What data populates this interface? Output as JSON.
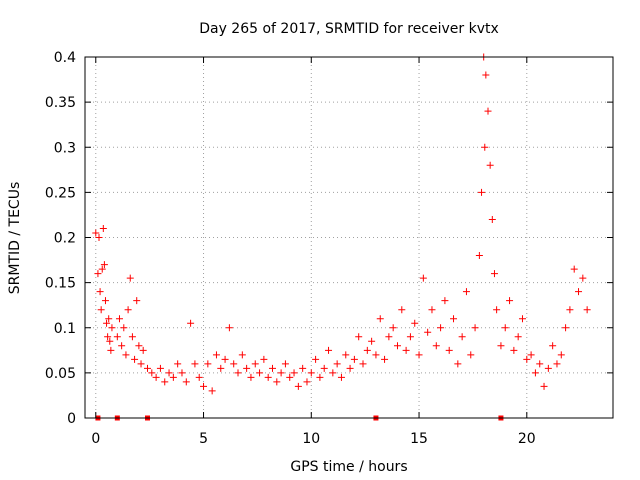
{
  "chart_data": {
    "type": "scatter",
    "title": "Day 265 of 2017, SRMTID for receiver kvtx",
    "xlabel": "GPS time / hours",
    "ylabel": "SRMTID / TECUs",
    "xlim": [
      -0.5,
      24
    ],
    "ylim": [
      0,
      0.4
    ],
    "x_ticks": [
      0,
      5,
      10,
      15,
      20
    ],
    "y_ticks": [
      0,
      0.05,
      0.1,
      0.15,
      0.2,
      0.25,
      0.3,
      0.35,
      0.4
    ],
    "x_tick_labels": [
      "0",
      "5",
      "10",
      "15",
      "20"
    ],
    "y_tick_labels": [
      "0",
      "0.05",
      "0.1",
      "0.15",
      "0.2",
      "0.25",
      "0.3",
      "0.35",
      "0.4"
    ],
    "grid": true,
    "marker": "+",
    "color": "#ff0000",
    "series": [
      {
        "name": "SRMTID",
        "points": [
          [
            0.0,
            0.205
          ],
          [
            0.1,
            0.16
          ],
          [
            0.15,
            0.2
          ],
          [
            0.2,
            0.14
          ],
          [
            0.25,
            0.12
          ],
          [
            0.3,
            0.165
          ],
          [
            0.35,
            0.21
          ],
          [
            0.4,
            0.17
          ],
          [
            0.45,
            0.13
          ],
          [
            0.5,
            0.105
          ],
          [
            0.55,
            0.09
          ],
          [
            0.6,
            0.11
          ],
          [
            0.65,
            0.085
          ],
          [
            0.7,
            0.075
          ],
          [
            0.75,
            0.1
          ],
          [
            1.0,
            0.09
          ],
          [
            1.1,
            0.11
          ],
          [
            1.2,
            0.08
          ],
          [
            1.3,
            0.1
          ],
          [
            1.4,
            0.07
          ],
          [
            1.5,
            0.12
          ],
          [
            1.6,
            0.155
          ],
          [
            1.7,
            0.09
          ],
          [
            1.8,
            0.065
          ],
          [
            1.9,
            0.13
          ],
          [
            2.0,
            0.08
          ],
          [
            2.1,
            0.06
          ],
          [
            2.2,
            0.075
          ],
          [
            2.4,
            0.055
          ],
          [
            2.6,
            0.05
          ],
          [
            2.8,
            0.045
          ],
          [
            3.0,
            0.055
          ],
          [
            3.2,
            0.04
          ],
          [
            3.4,
            0.05
          ],
          [
            3.6,
            0.045
          ],
          [
            3.8,
            0.06
          ],
          [
            4.0,
            0.05
          ],
          [
            4.2,
            0.04
          ],
          [
            4.4,
            0.105
          ],
          [
            4.6,
            0.06
          ],
          [
            4.8,
            0.045
          ],
          [
            5.0,
            0.035
          ],
          [
            5.2,
            0.06
          ],
          [
            5.4,
            0.03
          ],
          [
            5.6,
            0.07
          ],
          [
            5.8,
            0.055
          ],
          [
            6.0,
            0.065
          ],
          [
            6.2,
            0.1
          ],
          [
            6.4,
            0.06
          ],
          [
            6.6,
            0.05
          ],
          [
            6.8,
            0.07
          ],
          [
            7.0,
            0.055
          ],
          [
            7.2,
            0.045
          ],
          [
            7.4,
            0.06
          ],
          [
            7.6,
            0.05
          ],
          [
            7.8,
            0.065
          ],
          [
            8.0,
            0.045
          ],
          [
            8.2,
            0.055
          ],
          [
            8.4,
            0.04
          ],
          [
            8.6,
            0.05
          ],
          [
            8.8,
            0.06
          ],
          [
            9.0,
            0.045
          ],
          [
            9.2,
            0.05
          ],
          [
            9.4,
            0.035
          ],
          [
            9.6,
            0.055
          ],
          [
            9.8,
            0.04
          ],
          [
            10.0,
            0.05
          ],
          [
            10.2,
            0.065
          ],
          [
            10.4,
            0.045
          ],
          [
            10.6,
            0.055
          ],
          [
            10.8,
            0.075
          ],
          [
            11.0,
            0.05
          ],
          [
            11.2,
            0.06
          ],
          [
            11.4,
            0.045
          ],
          [
            11.6,
            0.07
          ],
          [
            11.8,
            0.055
          ],
          [
            12.0,
            0.065
          ],
          [
            12.2,
            0.09
          ],
          [
            12.4,
            0.06
          ],
          [
            12.6,
            0.075
          ],
          [
            12.8,
            0.085
          ],
          [
            13.0,
            0.07
          ],
          [
            13.2,
            0.11
          ],
          [
            13.4,
            0.065
          ],
          [
            13.6,
            0.09
          ],
          [
            13.8,
            0.1
          ],
          [
            14.0,
            0.08
          ],
          [
            14.2,
            0.12
          ],
          [
            14.4,
            0.075
          ],
          [
            14.6,
            0.09
          ],
          [
            14.8,
            0.105
          ],
          [
            15.0,
            0.07
          ],
          [
            15.2,
            0.155
          ],
          [
            15.4,
            0.095
          ],
          [
            15.6,
            0.12
          ],
          [
            15.8,
            0.08
          ],
          [
            16.0,
            0.1
          ],
          [
            16.2,
            0.13
          ],
          [
            16.4,
            0.075
          ],
          [
            16.6,
            0.11
          ],
          [
            16.8,
            0.06
          ],
          [
            17.0,
            0.09
          ],
          [
            17.2,
            0.14
          ],
          [
            17.4,
            0.07
          ],
          [
            17.6,
            0.1
          ],
          [
            17.8,
            0.18
          ],
          [
            17.9,
            0.25
          ],
          [
            18.0,
            0.4
          ],
          [
            18.05,
            0.3
          ],
          [
            18.1,
            0.38
          ],
          [
            18.2,
            0.34
          ],
          [
            18.3,
            0.28
          ],
          [
            18.4,
            0.22
          ],
          [
            18.5,
            0.16
          ],
          [
            18.6,
            0.12
          ],
          [
            18.8,
            0.08
          ],
          [
            19.0,
            0.1
          ],
          [
            19.2,
            0.13
          ],
          [
            19.4,
            0.075
          ],
          [
            19.6,
            0.09
          ],
          [
            19.8,
            0.11
          ],
          [
            20.0,
            0.065
          ],
          [
            20.2,
            0.07
          ],
          [
            20.4,
            0.05
          ],
          [
            20.6,
            0.06
          ],
          [
            20.8,
            0.035
          ],
          [
            21.0,
            0.055
          ],
          [
            21.2,
            0.08
          ],
          [
            21.4,
            0.06
          ],
          [
            21.6,
            0.07
          ],
          [
            21.8,
            0.1
          ],
          [
            22.0,
            0.12
          ],
          [
            22.2,
            0.165
          ],
          [
            22.4,
            0.14
          ],
          [
            22.6,
            0.155
          ],
          [
            22.8,
            0.12
          ]
        ]
      }
    ],
    "zero_marks_x": [
      0.1,
      1.0,
      2.4,
      13.0,
      18.8
    ]
  }
}
